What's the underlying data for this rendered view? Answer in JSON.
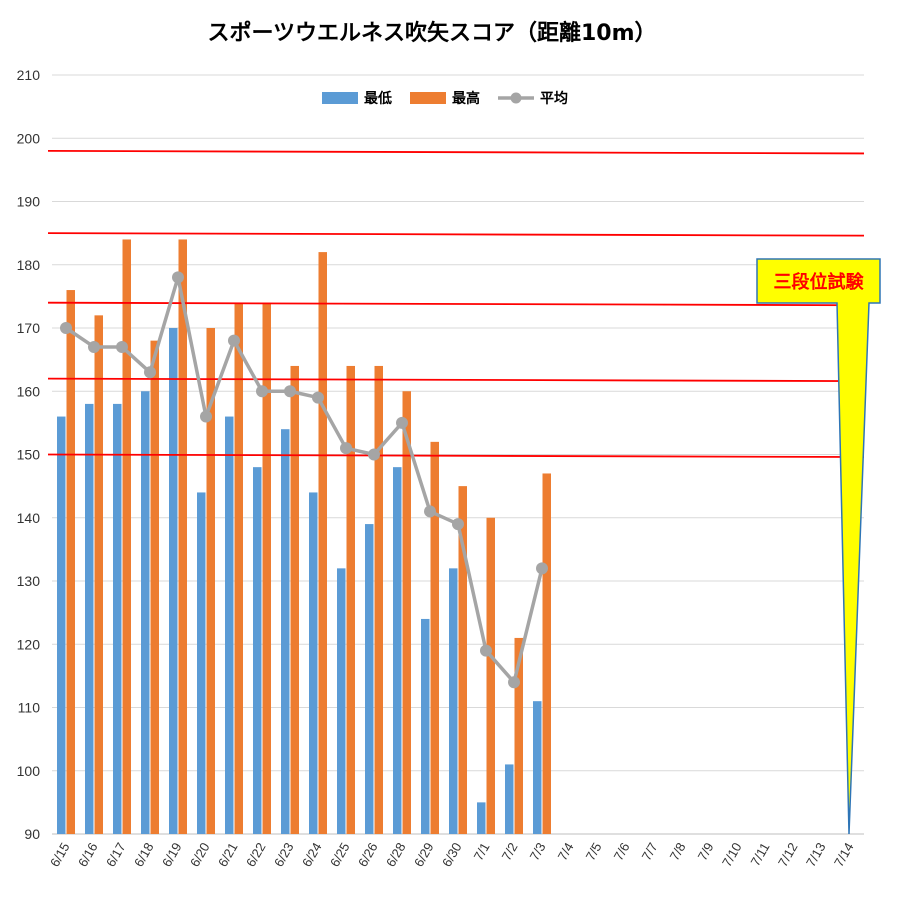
{
  "title": "スポーツウエルネス吹矢スコア（距離10m）",
  "annotation": {
    "text": "三段位試験",
    "target_date": "7/14"
  },
  "colors": {
    "min": "#5b9bd5",
    "max": "#ed7d31",
    "avg": "#a5a5a5",
    "reference_line": "#ff0000",
    "grid": "#d9d9d9",
    "callout_fill": "#ffff00",
    "callout_stroke": "#2e75b6"
  },
  "chart_data": {
    "type": "bar",
    "categories": [
      "6/15",
      "6/16",
      "6/17",
      "6/18",
      "6/19",
      "6/20",
      "6/21",
      "6/22",
      "6/23",
      "6/24",
      "6/25",
      "6/26",
      "6/28",
      "6/29",
      "6/30",
      "7/1",
      "7/2",
      "7/3",
      "7/4",
      "7/5",
      "7/6",
      "7/7",
      "7/8",
      "7/9",
      "7/10",
      "7/11",
      "7/12",
      "7/13",
      "7/14"
    ],
    "series": [
      {
        "name": "最低",
        "type": "bar",
        "values": [
          156,
          158,
          158,
          160,
          170,
          144,
          156,
          148,
          154,
          144,
          132,
          139,
          148,
          124,
          132,
          95,
          101,
          111,
          null,
          null,
          null,
          null,
          null,
          null,
          null,
          null,
          null,
          null,
          null
        ]
      },
      {
        "name": "最高",
        "type": "bar",
        "values": [
          176,
          172,
          184,
          168,
          184,
          170,
          174,
          174,
          164,
          182,
          164,
          164,
          160,
          152,
          145,
          140,
          121,
          147,
          null,
          null,
          null,
          null,
          null,
          null,
          null,
          null,
          null,
          null,
          null
        ]
      },
      {
        "name": "平均",
        "type": "line",
        "values": [
          170,
          167,
          167,
          163,
          178,
          156,
          168,
          160,
          160,
          159,
          151,
          150,
          155,
          141,
          139,
          119,
          114,
          132,
          null,
          null,
          null,
          null,
          null,
          null,
          null,
          null,
          null,
          null,
          null
        ]
      }
    ],
    "reference_lines": [
      198,
      185,
      174,
      162,
      150
    ],
    "ylim": [
      90,
      210
    ],
    "yticks": [
      90,
      100,
      110,
      120,
      130,
      140,
      150,
      160,
      170,
      180,
      190,
      200,
      210
    ],
    "xlabel": "",
    "ylabel": "",
    "grid": true,
    "legend_position": "top"
  }
}
